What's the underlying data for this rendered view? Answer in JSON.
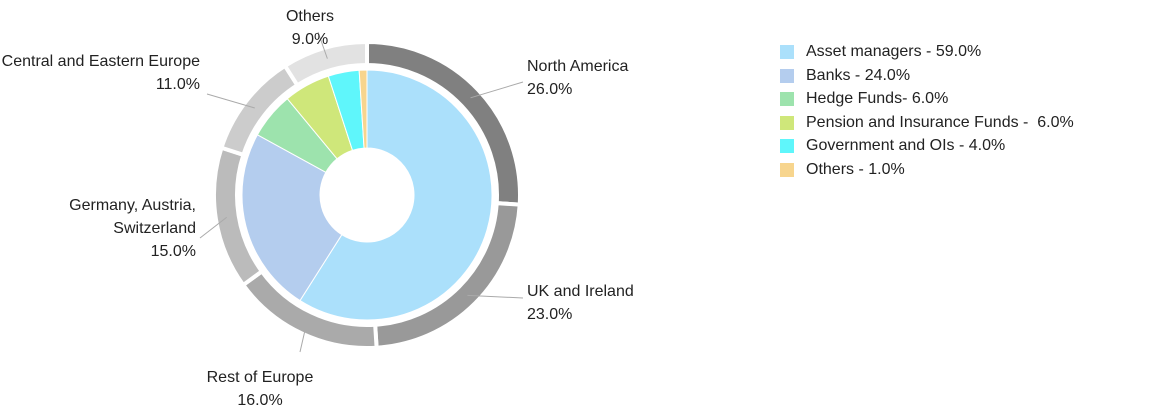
{
  "chart_data": [
    {
      "type": "donut",
      "ring": "outer",
      "categories": [
        "North America",
        "UK and Ireland",
        "Rest of Europe",
        "Germany, Austria, Switzerland",
        "Central and Eastern Europe",
        "Others"
      ],
      "values": [
        26,
        23,
        16,
        15,
        11,
        9
      ],
      "value_labels": [
        "26.0%",
        "23.0%",
        "16.0%",
        "15.0%",
        "11.0%",
        "9.0%"
      ],
      "colors": [
        "#808080",
        "#999999",
        "#aaaaaa",
        "#bbbbbb",
        "#cccccc",
        "#e2e2e2"
      ]
    },
    {
      "type": "donut",
      "ring": "inner",
      "legend": "right",
      "categories": [
        "Asset managers - 59.0%",
        "Banks - 24.0%",
        "Hedge Funds- 6.0%",
        "Pension and Insurance Funds -  6.0%",
        "Government and OIs - 4.0%",
        "Others - 1.0%"
      ],
      "values": [
        59,
        24,
        6,
        6,
        4,
        1
      ],
      "colors": [
        "#abe0fb",
        "#b4cdee",
        "#9de3ad",
        "#cfe77a",
        "#5ff6fb",
        "#f7d58e"
      ]
    }
  ]
}
